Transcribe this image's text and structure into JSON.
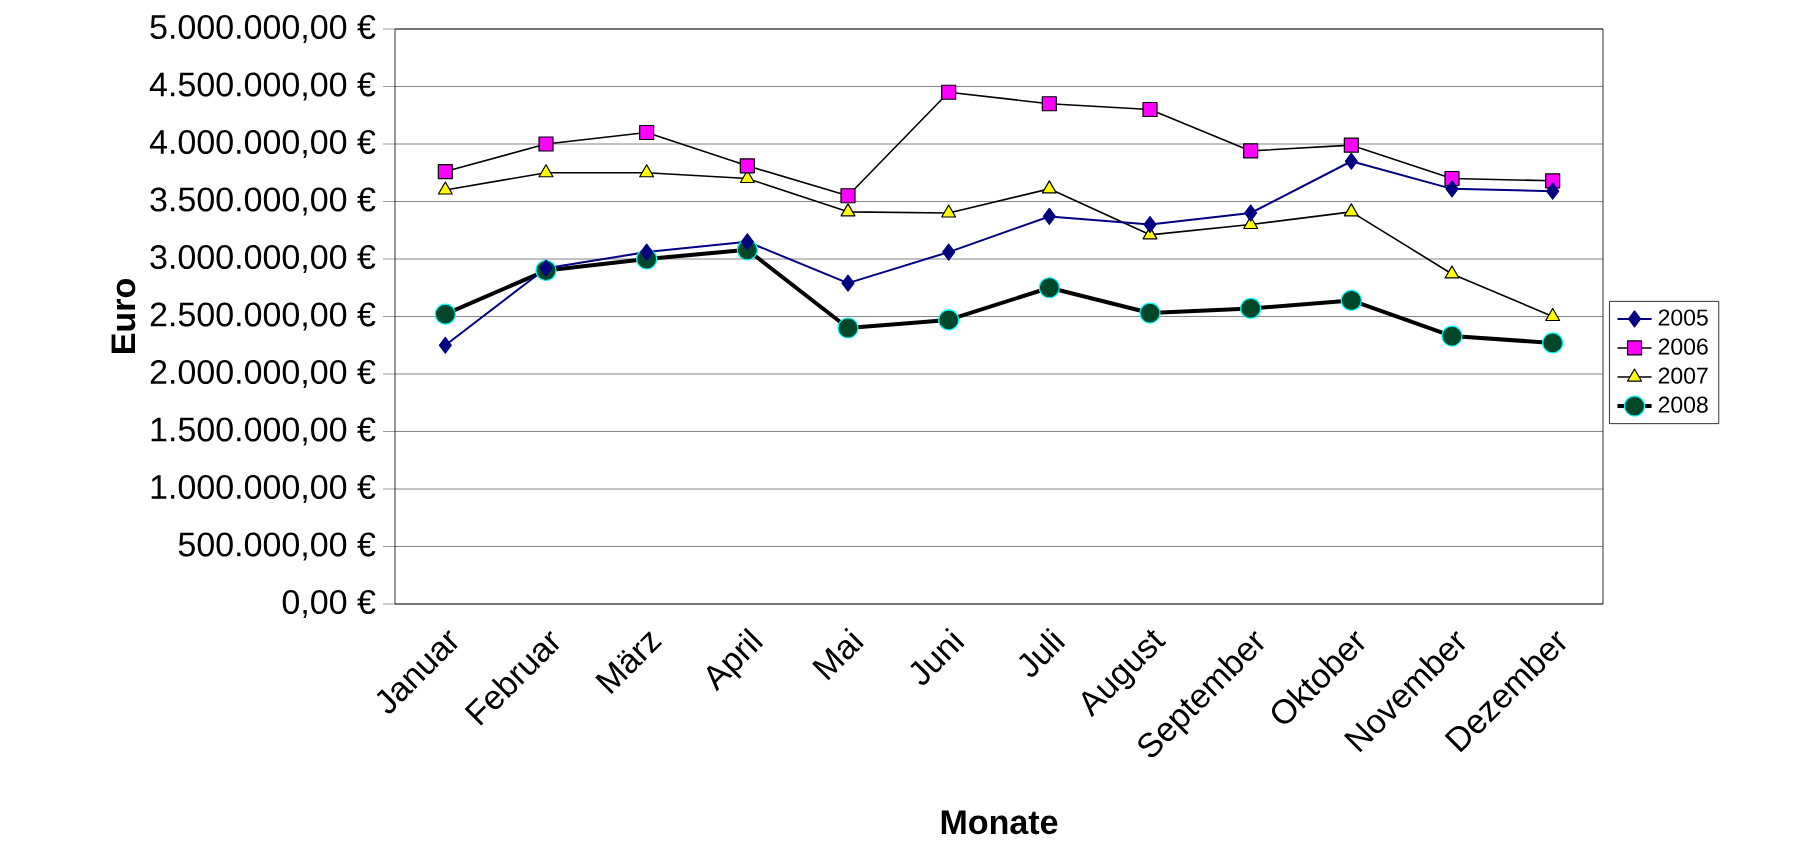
{
  "chart_data": {
    "type": "line",
    "xlabel": "Monate",
    "ylabel": "Euro",
    "categories": [
      "Januar",
      "Februar",
      "März",
      "April",
      "Mai",
      "Juni",
      "Juli",
      "August",
      "September",
      "Oktober",
      "November",
      "Dezember"
    ],
    "series": [
      {
        "name": "2005",
        "color": "#000080",
        "marker": "diamond",
        "values": [
          2250000,
          2920000,
          3060000,
          3150000,
          2790000,
          3060000,
          3370000,
          3300000,
          3400000,
          3850000,
          3610000,
          3590000
        ]
      },
      {
        "name": "2006",
        "color": "#000000",
        "marker": "square",
        "values": [
          3760000,
          4000000,
          4100000,
          3810000,
          3550000,
          4450000,
          4350000,
          4300000,
          3940000,
          3990000,
          3700000,
          3680000
        ]
      },
      {
        "name": "2007",
        "color": "#000000",
        "marker": "triangle",
        "values": [
          3600000,
          3750000,
          3750000,
          3700000,
          3410000,
          3400000,
          3610000,
          3210000,
          3300000,
          3410000,
          2870000,
          2500000
        ]
      },
      {
        "name": "2008",
        "color": "#000000",
        "marker": "circle",
        "values": [
          2520000,
          2900000,
          3000000,
          3080000,
          2400000,
          2470000,
          2750000,
          2530000,
          2570000,
          2640000,
          2330000,
          2270000
        ]
      }
    ],
    "ylim": [
      0,
      5000000
    ],
    "yticks": [
      {
        "value": 0,
        "label": "0,00 €"
      },
      {
        "value": 500000,
        "label": "500.000,00 €"
      },
      {
        "value": 1000000,
        "label": "1.000.000,00 €"
      },
      {
        "value": 1500000,
        "label": "1.500.000,00 €"
      },
      {
        "value": 2000000,
        "label": "2.000.000,00 €"
      },
      {
        "value": 2500000,
        "label": "2.500.000,00 €"
      },
      {
        "value": 3000000,
        "label": "3.000.000,00 €"
      },
      {
        "value": 3500000,
        "label": "3.500.000,00 €"
      },
      {
        "value": 4000000,
        "label": "4.000.000,00 €"
      },
      {
        "value": 4500000,
        "label": "4.500.000,00 €"
      },
      {
        "value": 5000000,
        "label": "5.000.000,00 €"
      }
    ],
    "grid": "y",
    "legend": "right",
    "line_style": "solid"
  }
}
